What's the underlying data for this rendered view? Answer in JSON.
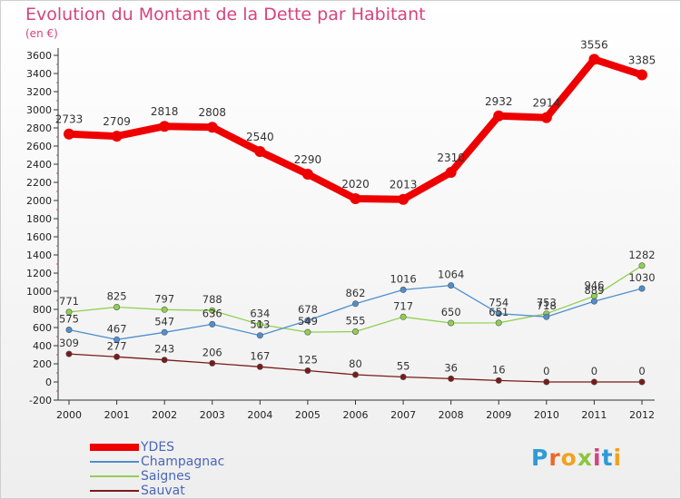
{
  "title": "Evolution du Montant de la Dette par Habitant",
  "unit_label": "(en €)",
  "logo_text": "Proxiti",
  "chart_data": {
    "type": "line",
    "title": "Evolution du Montant de la Dette par Habitant",
    "ylabel": "(en €)",
    "x": [
      "2000",
      "2001",
      "2002",
      "2003",
      "2004",
      "2005",
      "2006",
      "2007",
      "2008",
      "2009",
      "2010",
      "2011",
      "2012"
    ],
    "ylim": [
      -200,
      3600
    ],
    "yticks": [
      -200,
      0,
      200,
      400,
      600,
      800,
      1000,
      1200,
      1400,
      1600,
      1800,
      2000,
      2200,
      2400,
      2600,
      2800,
      3000,
      3200,
      3400,
      3600
    ],
    "grid": false,
    "legend_position": "bottom-left",
    "series": [
      {
        "name": "YDES",
        "color": "#ee0000",
        "values": [
          2733,
          2709,
          2818,
          2808,
          2540,
          2290,
          2020,
          2013,
          2310,
          2932,
          2914,
          3556,
          3385
        ]
      },
      {
        "name": "Champagnac",
        "color": "#4f8fd0",
        "values": [
          575,
          467,
          547,
          636,
          513,
          678,
          862,
          1016,
          1064,
          754,
          718,
          889,
          1030
        ]
      },
      {
        "name": "Saignes",
        "color": "#90d050",
        "values": [
          771,
          825,
          797,
          788,
          634,
          549,
          555,
          717,
          650,
          651,
          753,
          946,
          1282
        ]
      },
      {
        "name": "Sauvat",
        "color": "#7a1a1a",
        "values": [
          309,
          277,
          243,
          206,
          167,
          125,
          80,
          55,
          36,
          16,
          0,
          0,
          0
        ]
      }
    ]
  }
}
